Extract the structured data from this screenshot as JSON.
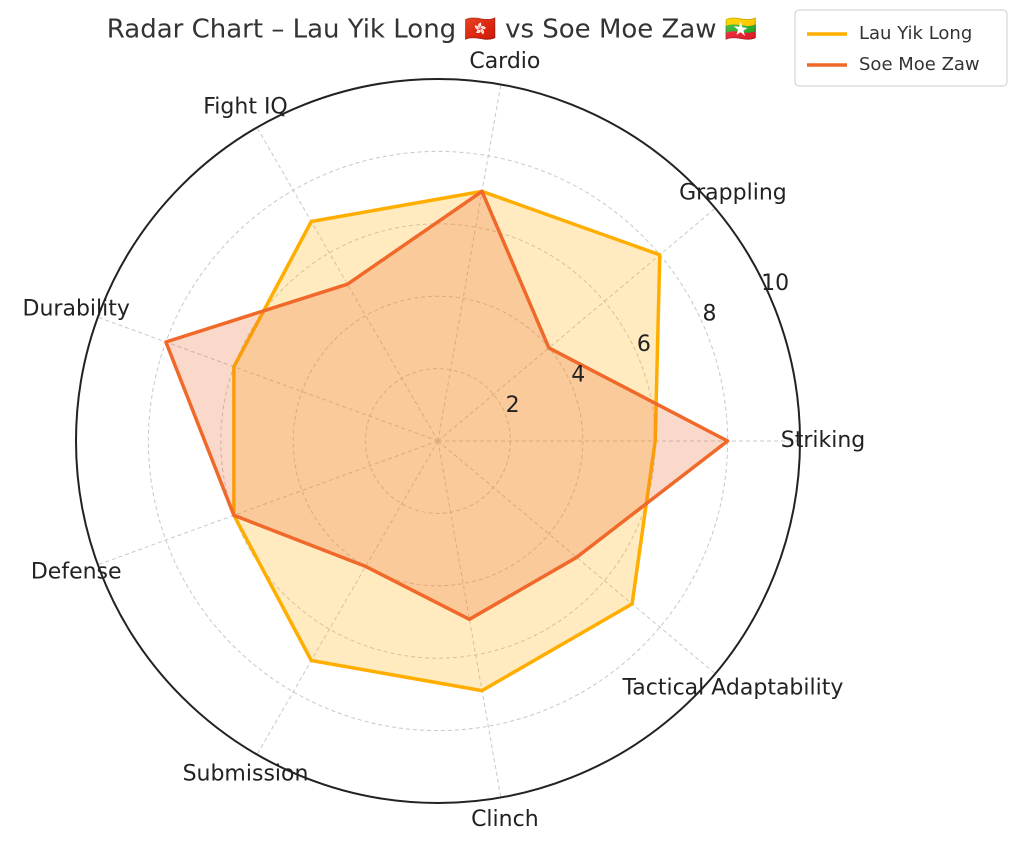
{
  "chart_data": {
    "type": "radar",
    "title": "Radar Chart – Lau Yik Long 🇭🇰 vs Soe Moe Zaw 🇲🇲",
    "categories": [
      "Striking",
      "Grappling",
      "Cardio",
      "Fight IQ",
      "Durability",
      "Defense",
      "Submission",
      "Clinch",
      "Tactical Adaptability"
    ],
    "series": [
      {
        "name": "Lau Yik Long",
        "color": "#ffae00",
        "values": [
          6,
          8,
          7,
          7,
          6,
          6,
          7,
          7,
          7
        ]
      },
      {
        "name": "Soe Moe Zaw",
        "color": "#f0692a",
        "values": [
          8,
          4,
          7,
          5,
          8,
          6,
          4,
          5,
          5
        ]
      }
    ],
    "rlim": [
      0,
      10
    ],
    "rticks": [
      2,
      4,
      6,
      8,
      10
    ],
    "grid": true,
    "legend": "upper right"
  }
}
